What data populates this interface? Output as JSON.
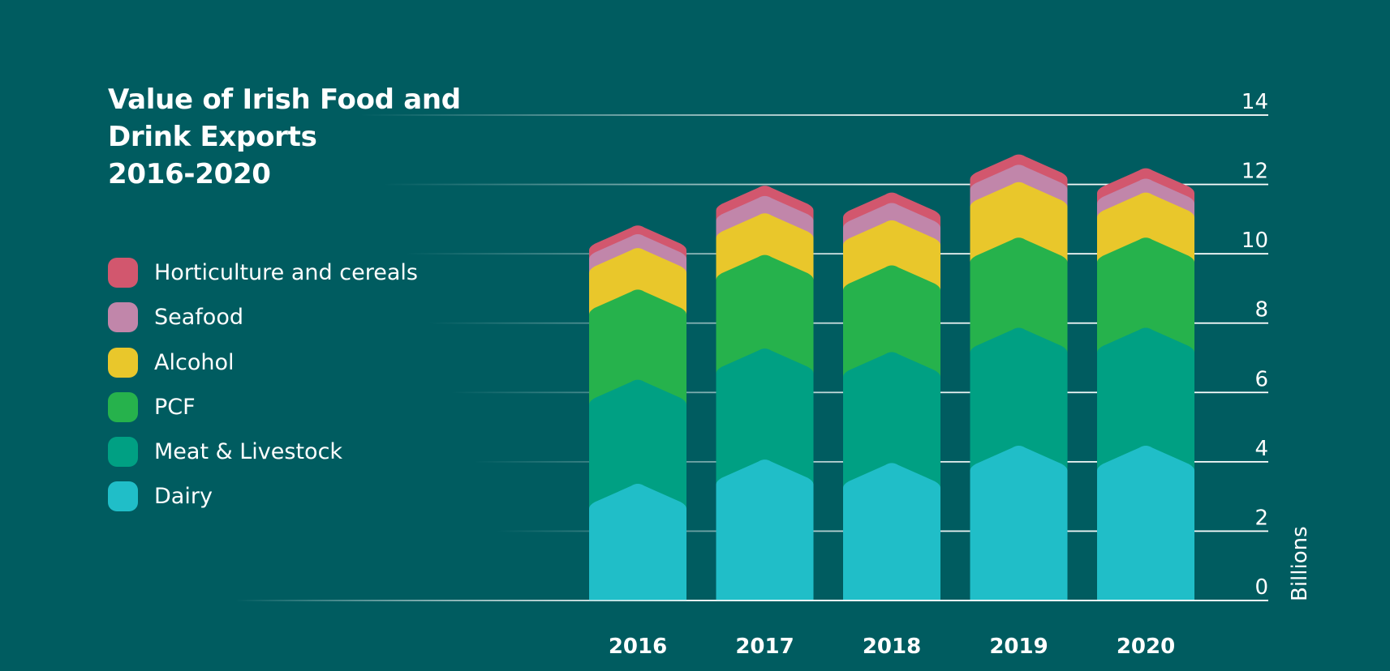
{
  "chart_data": {
    "type": "bar",
    "stacked": true,
    "title_lines": [
      "Value of Irish Food and",
      "Drink Exports",
      "2016-2020"
    ],
    "ylabel": "Billions",
    "ylim": [
      0,
      14
    ],
    "yticks": [
      0,
      2,
      4,
      6,
      8,
      10,
      12,
      14
    ],
    "grid": true,
    "legend_position": "left",
    "categories": [
      "2016",
      "2017",
      "2018",
      "2019",
      "2020"
    ],
    "series": [
      {
        "name": "Dairy",
        "color": "#20bec8",
        "values": [
          3.4,
          4.1,
          4.0,
          4.5,
          4.5
        ]
      },
      {
        "name": "Meat & Livestock",
        "color": "#00a083",
        "values": [
          3.0,
          3.2,
          3.2,
          3.4,
          3.4
        ]
      },
      {
        "name": "PCF",
        "color": "#26b24c",
        "values": [
          2.6,
          2.7,
          2.5,
          2.6,
          2.6
        ]
      },
      {
        "name": "Alcohol",
        "color": "#e9c72b",
        "values": [
          1.2,
          1.2,
          1.3,
          1.6,
          1.3
        ]
      },
      {
        "name": "Seafood",
        "color": "#c186aa",
        "values": [
          0.4,
          0.5,
          0.5,
          0.5,
          0.4
        ]
      },
      {
        "name": "Horticulture and cereals",
        "color": "#d2576e",
        "values": [
          0.25,
          0.3,
          0.3,
          0.3,
          0.3
        ]
      }
    ]
  }
}
